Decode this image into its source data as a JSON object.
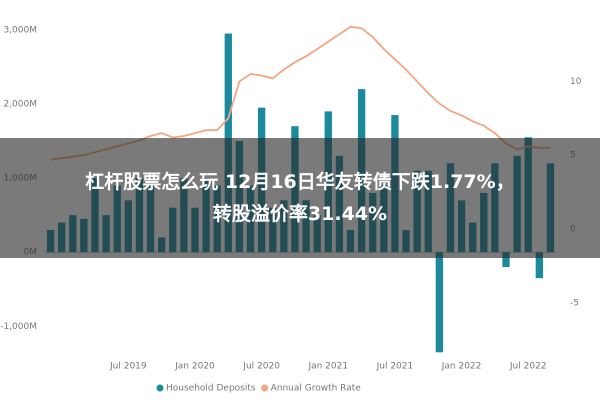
{
  "overlay_title": [
    "杠杆股票怎么玩 12月16日华友转债下跌1.77%，",
    "转股溢价率31.44%"
  ],
  "chart_data": {
    "type": "bar",
    "categories": [
      null,
      null,
      null,
      null,
      null,
      null,
      null,
      "Jul 2019",
      null,
      null,
      null,
      null,
      null,
      "Jan 2020",
      null,
      null,
      null,
      null,
      null,
      "Jul 2020",
      null,
      null,
      null,
      null,
      null,
      "Jan 2021",
      null,
      null,
      null,
      null,
      null,
      "Jul 2021",
      null,
      null,
      null,
      null,
      null,
      "Jan 2022",
      null,
      null,
      null,
      null,
      null,
      "Jul 2022",
      null,
      null
    ],
    "series": [
      {
        "name": "Household Deposits",
        "color": "#1b8a9c",
        "values": [
          300,
          400,
          500,
          450,
          1000,
          500,
          900,
          700,
          1000,
          900,
          200,
          600,
          1000,
          600,
          1000,
          900,
          2950,
          1500,
          900,
          1950,
          600,
          700,
          1700,
          700,
          500,
          1900,
          1300,
          300,
          2200,
          800,
          900,
          1850,
          300,
          1100,
          1100,
          -1350,
          1200,
          700,
          400,
          800,
          1200,
          -200,
          1300,
          1550,
          -350,
          1200
        ]
      },
      {
        "name": "Annual Growth Rate",
        "color": "#f4a582",
        "axis": "y2",
        "values": [
          4.7,
          4.8,
          4.9,
          5.0,
          5.2,
          5.4,
          5.6,
          5.8,
          6.0,
          6.3,
          6.5,
          6.2,
          6.3,
          6.5,
          6.7,
          6.7,
          7.5,
          10.0,
          10.5,
          10.4,
          10.2,
          10.8,
          11.3,
          11.7,
          12.2,
          12.7,
          13.2,
          13.7,
          13.6,
          13.0,
          12.2,
          11.5,
          10.8,
          10.0,
          9.2,
          8.5,
          8.0,
          7.7,
          7.3,
          7.0,
          6.5,
          5.8,
          5.4,
          5.6,
          5.5,
          5.5
        ]
      }
    ],
    "ylim": [
      -1400,
      3200
    ],
    "yticks": [
      {
        "value": 3000,
        "label": "3,000M"
      },
      {
        "value": 2000,
        "label": "2,000M"
      },
      {
        "value": 1000,
        "label": "1,000M"
      },
      {
        "value": 0,
        "label": "0M"
      },
      {
        "value": -1000,
        "label": "-1,000M"
      }
    ],
    "y2lim": [
      -8.6,
      14.5
    ],
    "y2ticks": [
      10,
      5,
      0,
      -5
    ],
    "legend": "bottom"
  }
}
